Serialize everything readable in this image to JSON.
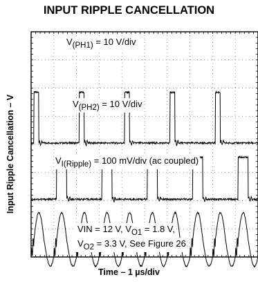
{
  "chart_data": {
    "type": "line",
    "title": "INPUT RIPPLE CANCELLATION",
    "xlabel": "Time – 1 µs/div",
    "ylabel": "Input Ripple Cancellation – V",
    "x_divisions": 10,
    "y_divisions": 8,
    "grid": true,
    "series": [
      {
        "name": "V(PH1)",
        "label_base": "V",
        "label_sub": "(PH1)",
        "label_rest": " = 10 V/div",
        "waveform": "pulse",
        "period_div": 2.0,
        "phase_div": 0.12,
        "width_div": 0.22,
        "baseline_div": 4.05,
        "high_div": 5.85
      },
      {
        "name": "V(PH2)",
        "label_base": "V",
        "label_sub": "(PH2)",
        "label_rest": " = 10 V/div",
        "waveform": "pulse",
        "period_div": 2.0,
        "phase_div": 1.12,
        "width_div": 0.45,
        "baseline_div": 2.05,
        "high_div": 3.55
      },
      {
        "name": "VI(Ripple)",
        "label_base": "V",
        "label_sub": "I(Ripple)",
        "label_rest": " = 100 mV/div (ac coupled)",
        "waveform": "ripple",
        "period_div": 1.0,
        "phase_div": 0.12,
        "center_div": 0.6,
        "amplitude_div": 0.75
      }
    ],
    "annotations": [
      {
        "parts": [
          {
            "base": "VIN = 12 V, V",
            "sub": "O1",
            "rest": " = 1.8 V,"
          }
        ]
      },
      {
        "parts": [
          {
            "base": "V",
            "sub": "O2",
            "rest": " = 3.3 V, See Figure 26"
          }
        ]
      }
    ]
  }
}
